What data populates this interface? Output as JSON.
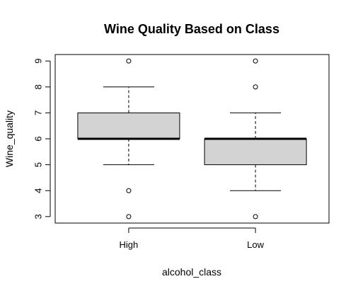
{
  "chart_data": {
    "type": "box",
    "title": "Wine Quality Based on Class",
    "xlabel": "alcohol_class",
    "ylabel": "Wine_quality",
    "categories": [
      "High",
      "Low"
    ],
    "ylim": [
      2.75,
      9.25
    ],
    "yticks": [
      3,
      4,
      5,
      6,
      7,
      8,
      9
    ],
    "grid": false,
    "boxes": [
      {
        "category": "High",
        "whisker_low": 5,
        "q1": 6,
        "median": 6,
        "q3": 7,
        "whisker_high": 8,
        "outliers": [
          3,
          4,
          9
        ]
      },
      {
        "category": "Low",
        "whisker_low": 4,
        "q1": 5,
        "median": 6,
        "q3": 6,
        "whisker_high": 7,
        "outliers": [
          3,
          8,
          9
        ]
      }
    ],
    "box_fill": "#d3d3d3",
    "line_color": "#000000"
  }
}
